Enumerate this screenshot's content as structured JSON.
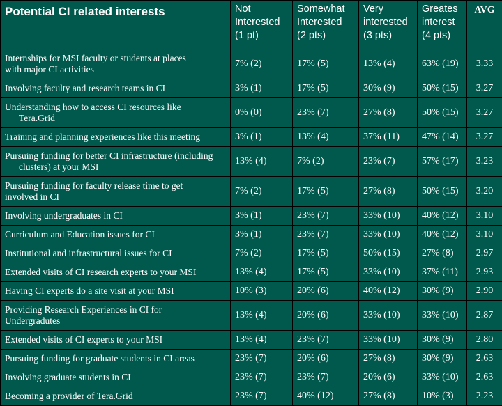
{
  "table": {
    "headers": {
      "title": "Potential CI related interests",
      "not_interested": [
        "Not",
        "Interested",
        "(1 pt)"
      ],
      "somewhat": [
        "Somewhat",
        "Interested",
        "(2 pts)"
      ],
      "very": [
        "Very",
        "interested",
        "(3 pts)"
      ],
      "greatest": [
        "Greates",
        "interest",
        "(4 pts)"
      ],
      "avg": "AVG"
    },
    "rows": [
      {
        "label1": "Internships for MSI faculty or students at places",
        "label2": "with major CI activities",
        "c1": "7% (2)",
        "c2": "17% (5)",
        "c3": "13% (4)",
        "c4": "63% (19)",
        "avg": "3.33"
      },
      {
        "label1": "Involving faculty and research teams in CI",
        "label2": "",
        "c1": "3% (1)",
        "c2": "17% (5)",
        "c3": "30% (9)",
        "c4": "50% (15)",
        "avg": "3.27"
      },
      {
        "label1": "Understanding how to access CI resources like",
        "label2": "Tera.Grid",
        "c1": "0% (0)",
        "c2": "23% (7)",
        "c3": "27% (8)",
        "c4": "50% (15)",
        "avg": "3.27"
      },
      {
        "label1": "Training and planning experiences like this meeting",
        "label2": "",
        "c1": "3% (1)",
        "c2": "13% (4)",
        "c3": "37% (11)",
        "c4": "47% (14)",
        "avg": "3.27"
      },
      {
        "label1": "Pursuing funding for better CI infrastructure (including",
        "label2": "clusters) at your MSI",
        "c1": "13% (4)",
        "c2": "7% (2)",
        "c3": "23% (7)",
        "c4": "57% (17)",
        "avg": "3.23"
      },
      {
        "label1": "Pursuing funding for faculty release time to get",
        "label2": "involved in CI",
        "c1": "7% (2)",
        "c2": "17% (5)",
        "c3": "27% (8)",
        "c4": "50% (15)",
        "avg": "3.20"
      },
      {
        "label1": "Involving undergraduates in CI",
        "label2": "",
        "c1": "3% (1)",
        "c2": "23% (7)",
        "c3": "33% (10)",
        "c4": "40% (12)",
        "avg": "3.10"
      },
      {
        "label1": "Curriculum and Education issues for CI",
        "label2": "",
        "c1": "3% (1)",
        "c2": "23% (7)",
        "c3": "33% (10)",
        "c4": "40% (12)",
        "avg": "3.10"
      },
      {
        "label1": "Institutional and infrastructural issues for CI",
        "label2": "",
        "c1": "7% (2)",
        "c2": "17% (5)",
        "c3": "50% (15)",
        "c4": "27% (8)",
        "avg": "2.97"
      },
      {
        "label1": "Extended visits of CI research experts to your MSI",
        "label2": "",
        "c1": "13% (4)",
        "c2": "17% (5)",
        "c3": "33% (10)",
        "c4": "37% (11)",
        "avg": "2.93"
      },
      {
        "label1": "Having CI experts do a site visit at your MSI",
        "label2": "",
        "c1": "10% (3)",
        "c2": "20% (6)",
        "c3": "40% (12)",
        "c4": "30% (9)",
        "avg": "2.90"
      },
      {
        "label1": "Providing Research Experiences in CI for",
        "label2": "Undergradutes",
        "c1": "13% (4)",
        "c2": "20% (6)",
        "c3": "33% (10)",
        "c4": "33% (10)",
        "avg": "2.87"
      },
      {
        "label1": "Extended visits of CI experts to your MSI",
        "label2": "",
        "c1": "13% (4)",
        "c2": "23% (7)",
        "c3": "33% (10)",
        "c4": "30% (9)",
        "avg": "2.80"
      },
      {
        "label1": "Pursuing funding for graduate students in CI areas",
        "label2": "",
        "c1": "23% (7)",
        "c2": "20% (6)",
        "c3": "27% (8)",
        "c4": "30% (9)",
        "avg": "2.63"
      },
      {
        "label1": "Involving graduate students in CI",
        "label2": "",
        "c1": "23% (7)",
        "c2": "23% (7)",
        "c3": "20% (6)",
        "c4": "33% (10)",
        "avg": "2.63"
      },
      {
        "label1": "Becoming a provider of Tera.Grid",
        "label2": "",
        "c1": "23% (7)",
        "c2": "40% (12)",
        "c3": "27% (8)",
        "c4": "10% (3)",
        "avg": "2.23"
      }
    ]
  },
  "colors": {
    "background": "#00594c",
    "text": "#ffffff",
    "border": "#000000"
  }
}
